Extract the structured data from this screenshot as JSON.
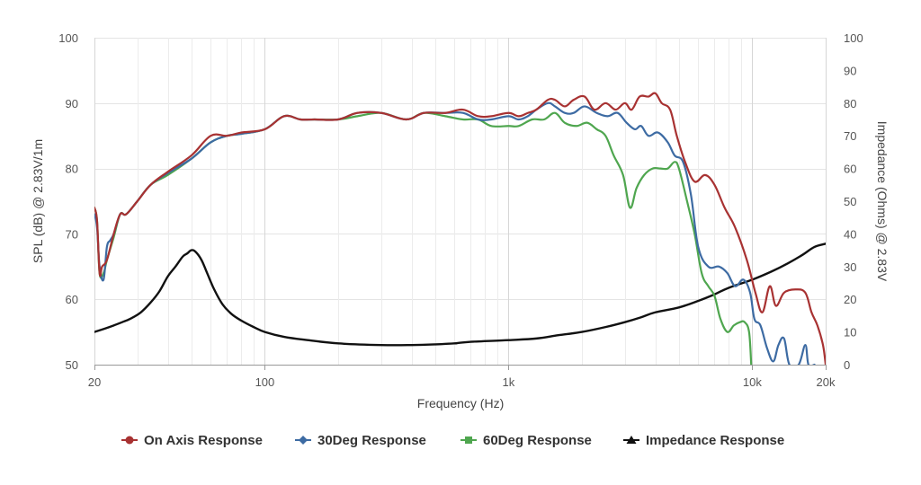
{
  "chart_data": {
    "type": "line",
    "title": "",
    "xlabel": "Frequency (Hz)",
    "ylabel": "SPL (dB) @ 2.83V/1m",
    "y2label": "Impedance (Ohms) @ 2.83V",
    "x_scale": "log",
    "xlim": [
      20,
      20000
    ],
    "ylim": [
      50,
      100
    ],
    "y2lim": [
      0,
      100
    ],
    "grid": true,
    "legend": "bottom",
    "x_ticks": [
      {
        "value": 20,
        "label": "20"
      },
      {
        "value": 100,
        "label": "100"
      },
      {
        "value": 1000,
        "label": "1k"
      },
      {
        "value": 10000,
        "label": "10k"
      },
      {
        "value": 20000,
        "label": "20k"
      }
    ],
    "y_ticks": [
      {
        "value": 50,
        "label": "50"
      },
      {
        "value": 60,
        "label": "60"
      },
      {
        "value": 70,
        "label": "70"
      },
      {
        "value": 80,
        "label": "80"
      },
      {
        "value": 90,
        "label": "90"
      },
      {
        "value": 100,
        "label": "100"
      }
    ],
    "y2_ticks": [
      {
        "value": 0,
        "label": "0"
      },
      {
        "value": 10,
        "label": "10"
      },
      {
        "value": 20,
        "label": "20"
      },
      {
        "value": 30,
        "label": "30"
      },
      {
        "value": 40,
        "label": "40"
      },
      {
        "value": 50,
        "label": "50"
      },
      {
        "value": 60,
        "label": "60"
      },
      {
        "value": 70,
        "label": "70"
      },
      {
        "value": 80,
        "label": "80"
      },
      {
        "value": 90,
        "label": "90"
      },
      {
        "value": 100,
        "label": "100"
      }
    ],
    "series": [
      {
        "name": "On Axis Response",
        "axis": "left",
        "color": "#a83232",
        "marker": "circle",
        "points": [
          [
            20,
            74
          ],
          [
            20.5,
            72
          ],
          [
            21,
            64
          ],
          [
            21.5,
            65
          ],
          [
            22.5,
            66
          ],
          [
            24,
            70
          ],
          [
            25.5,
            73
          ],
          [
            27,
            73
          ],
          [
            30,
            75
          ],
          [
            34,
            77.5
          ],
          [
            40,
            79.5
          ],
          [
            50,
            82
          ],
          [
            60,
            85
          ],
          [
            70,
            85
          ],
          [
            80,
            85.5
          ],
          [
            100,
            86
          ],
          [
            120,
            88
          ],
          [
            140,
            87.5
          ],
          [
            160,
            87.5
          ],
          [
            200,
            87.5
          ],
          [
            240,
            88.5
          ],
          [
            300,
            88.5
          ],
          [
            380,
            87.5
          ],
          [
            450,
            88.5
          ],
          [
            550,
            88.5
          ],
          [
            650,
            89
          ],
          [
            750,
            88
          ],
          [
            850,
            88
          ],
          [
            1000,
            88.5
          ],
          [
            1100,
            88
          ],
          [
            1200,
            88.5
          ],
          [
            1300,
            89
          ],
          [
            1450,
            90.5
          ],
          [
            1550,
            90.5
          ],
          [
            1700,
            89.5
          ],
          [
            1850,
            90.5
          ],
          [
            2050,
            91
          ],
          [
            2250,
            89
          ],
          [
            2500,
            90
          ],
          [
            2750,
            89
          ],
          [
            3000,
            90
          ],
          [
            3200,
            89
          ],
          [
            3450,
            91
          ],
          [
            3750,
            91
          ],
          [
            4000,
            91.5
          ],
          [
            4250,
            90
          ],
          [
            4600,
            89
          ],
          [
            4900,
            85
          ],
          [
            5300,
            81
          ],
          [
            5800,
            78
          ],
          [
            6400,
            79
          ],
          [
            7000,
            77.5
          ],
          [
            7700,
            74
          ],
          [
            8500,
            71
          ],
          [
            9500,
            66
          ],
          [
            10300,
            61
          ],
          [
            11000,
            58
          ],
          [
            11800,
            62
          ],
          [
            12500,
            59
          ],
          [
            13500,
            61
          ],
          [
            15000,
            61.5
          ],
          [
            16500,
            61
          ],
          [
            17500,
            58
          ],
          [
            18500,
            56
          ],
          [
            19500,
            53
          ],
          [
            20000,
            50
          ]
        ]
      },
      {
        "name": "30Deg Response",
        "axis": "left",
        "color": "#3d6ba3",
        "marker": "diamond",
        "points": [
          [
            20,
            73
          ],
          [
            20.5,
            71
          ],
          [
            21,
            65
          ],
          [
            21.8,
            63
          ],
          [
            22.5,
            68
          ],
          [
            23.2,
            69
          ],
          [
            24,
            70
          ],
          [
            25.5,
            73
          ],
          [
            27,
            73
          ],
          [
            30,
            75
          ],
          [
            34,
            77.5
          ],
          [
            40,
            79.3
          ],
          [
            50,
            81.5
          ],
          [
            60,
            84
          ],
          [
            70,
            85
          ],
          [
            80,
            85.3
          ],
          [
            100,
            86
          ],
          [
            120,
            88
          ],
          [
            140,
            87.5
          ],
          [
            160,
            87.5
          ],
          [
            200,
            87.5
          ],
          [
            240,
            88.5
          ],
          [
            300,
            88.5
          ],
          [
            380,
            87.5
          ],
          [
            450,
            88.5
          ],
          [
            550,
            88.5
          ],
          [
            650,
            88.5
          ],
          [
            750,
            87.5
          ],
          [
            850,
            87.5
          ],
          [
            1000,
            88
          ],
          [
            1100,
            87.5
          ],
          [
            1200,
            88
          ],
          [
            1300,
            89
          ],
          [
            1450,
            90
          ],
          [
            1550,
            89.5
          ],
          [
            1700,
            88.5
          ],
          [
            1850,
            88.5
          ],
          [
            2050,
            89.5
          ],
          [
            2300,
            88.5
          ],
          [
            2550,
            88
          ],
          [
            2800,
            88.5
          ],
          [
            3050,
            87
          ],
          [
            3300,
            86
          ],
          [
            3500,
            86.5
          ],
          [
            3750,
            85
          ],
          [
            4100,
            85.5
          ],
          [
            4500,
            84
          ],
          [
            4800,
            82
          ],
          [
            5200,
            81
          ],
          [
            5600,
            76
          ],
          [
            6000,
            68
          ],
          [
            6600,
            65
          ],
          [
            7300,
            65
          ],
          [
            7900,
            64
          ],
          [
            8500,
            62
          ],
          [
            9200,
            63
          ],
          [
            9800,
            61
          ],
          [
            10200,
            57
          ],
          [
            10800,
            56
          ],
          [
            11500,
            52.5
          ],
          [
            12200,
            50.5
          ],
          [
            12800,
            53
          ],
          [
            13500,
            54
          ],
          [
            14200,
            50
          ],
          [
            15500,
            50
          ],
          [
            16500,
            53
          ],
          [
            17000,
            50
          ],
          [
            18000,
            50
          ]
        ]
      },
      {
        "name": "60Deg Response",
        "axis": "left",
        "color": "#4fa64f",
        "marker": "square",
        "points": [
          [
            20,
            74
          ],
          [
            20.5,
            72
          ],
          [
            21,
            64
          ],
          [
            21.8,
            64
          ],
          [
            22.5,
            66
          ],
          [
            24,
            69.5
          ],
          [
            25.5,
            73
          ],
          [
            27,
            73
          ],
          [
            30,
            75
          ],
          [
            34,
            77.5
          ],
          [
            40,
            79
          ],
          [
            50,
            81.5
          ],
          [
            60,
            84
          ],
          [
            70,
            85
          ],
          [
            80,
            85.3
          ],
          [
            100,
            86
          ],
          [
            120,
            88
          ],
          [
            140,
            87.5
          ],
          [
            160,
            87.5
          ],
          [
            200,
            87.5
          ],
          [
            240,
            88
          ],
          [
            300,
            88.5
          ],
          [
            380,
            87.5
          ],
          [
            450,
            88.5
          ],
          [
            550,
            88
          ],
          [
            650,
            87.5
          ],
          [
            750,
            87.5
          ],
          [
            850,
            86.5
          ],
          [
            1000,
            86.5
          ],
          [
            1100,
            86.5
          ],
          [
            1250,
            87.5
          ],
          [
            1400,
            87.5
          ],
          [
            1550,
            88.5
          ],
          [
            1700,
            87
          ],
          [
            1900,
            86.5
          ],
          [
            2100,
            87
          ],
          [
            2300,
            86
          ],
          [
            2500,
            85
          ],
          [
            2700,
            82
          ],
          [
            2950,
            79
          ],
          [
            3150,
            74
          ],
          [
            3350,
            77
          ],
          [
            3600,
            79
          ],
          [
            3900,
            80
          ],
          [
            4200,
            80
          ],
          [
            4500,
            80
          ],
          [
            4800,
            81
          ],
          [
            5000,
            80
          ],
          [
            5400,
            75
          ],
          [
            5800,
            70
          ],
          [
            6200,
            64
          ],
          [
            6600,
            62
          ],
          [
            7000,
            60.5
          ],
          [
            7400,
            57
          ],
          [
            7900,
            55
          ],
          [
            8400,
            56
          ],
          [
            8900,
            56.5
          ],
          [
            9300,
            56.5
          ],
          [
            9700,
            55
          ],
          [
            9900,
            50
          ]
        ]
      },
      {
        "name": "Impedance Response",
        "axis": "right",
        "color": "#111111",
        "marker": "triangle",
        "points": [
          [
            20,
            10
          ],
          [
            22,
            11
          ],
          [
            24,
            12
          ],
          [
            26,
            13
          ],
          [
            28,
            14
          ],
          [
            31,
            16
          ],
          [
            34,
            19
          ],
          [
            37,
            22.5
          ],
          [
            40,
            27
          ],
          [
            43,
            30
          ],
          [
            46,
            33
          ],
          [
            48,
            34
          ],
          [
            50,
            35
          ],
          [
            52,
            34.5
          ],
          [
            55,
            32
          ],
          [
            58,
            28
          ],
          [
            62,
            23
          ],
          [
            67,
            18.5
          ],
          [
            73,
            15.5
          ],
          [
            80,
            13.5
          ],
          [
            90,
            11.5
          ],
          [
            100,
            10
          ],
          [
            120,
            8.5
          ],
          [
            150,
            7.5
          ],
          [
            200,
            6.5
          ],
          [
            300,
            6
          ],
          [
            400,
            6
          ],
          [
            500,
            6.2
          ],
          [
            600,
            6.5
          ],
          [
            700,
            7
          ],
          [
            1000,
            7.5
          ],
          [
            1300,
            8
          ],
          [
            1600,
            9
          ],
          [
            2000,
            10
          ],
          [
            2500,
            11.5
          ],
          [
            3000,
            13
          ],
          [
            3500,
            14.5
          ],
          [
            4000,
            16
          ],
          [
            5000,
            17.5
          ],
          [
            6000,
            19.5
          ],
          [
            7000,
            21.5
          ],
          [
            8000,
            23.5
          ],
          [
            10000,
            26
          ],
          [
            12000,
            28.5
          ],
          [
            14000,
            31
          ],
          [
            16000,
            33.5
          ],
          [
            18000,
            36
          ],
          [
            20000,
            37
          ]
        ]
      }
    ]
  }
}
